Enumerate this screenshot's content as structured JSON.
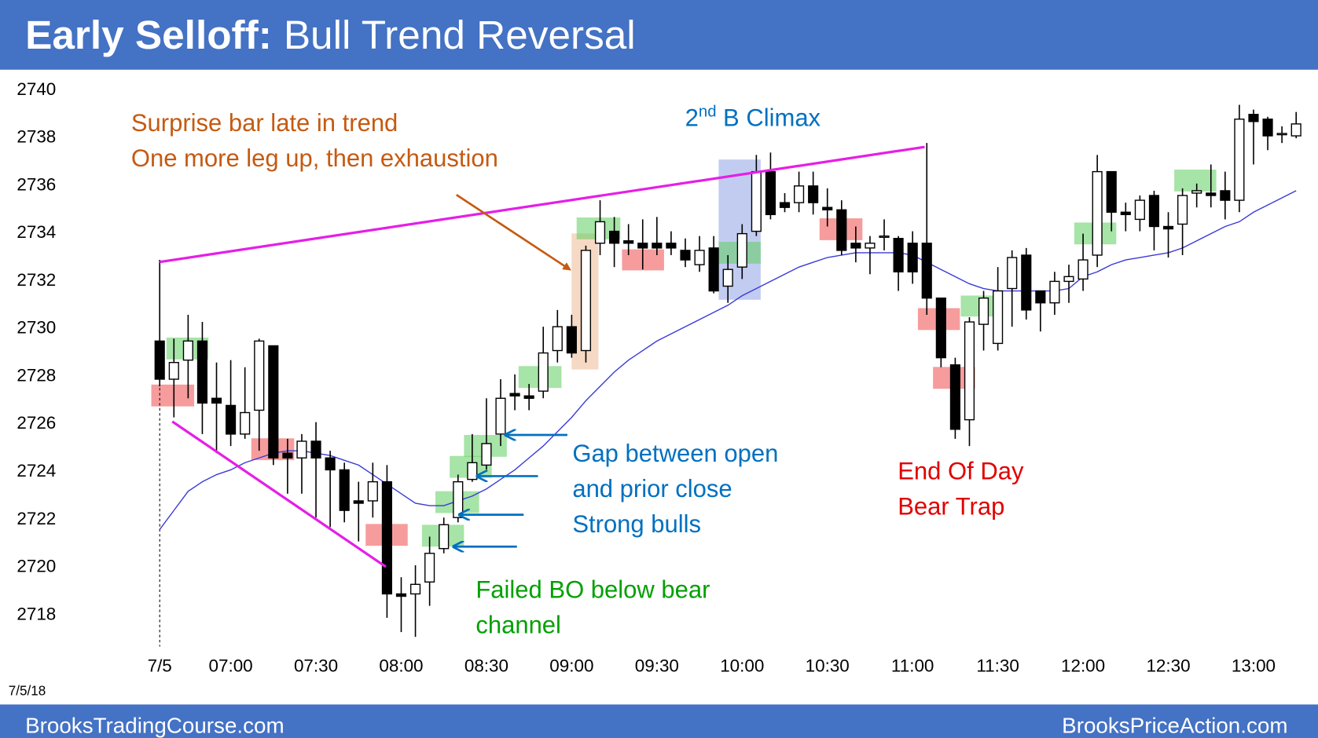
{
  "title": "Early Selloff:",
  "subtitle": "Bull Trend Reversal",
  "date_label": "7/5/18",
  "footer_left": "BrooksTradingCourse.com",
  "footer_right": "BrooksPriceAction.com",
  "annotations": {
    "surprise": [
      "Surprise bar late in trend",
      "One more leg up, then exhaustion"
    ],
    "climax": {
      "number": "2",
      "superscript": "nd",
      "text": "B Climax"
    },
    "gap": [
      "Gap between open",
      "and prior close",
      "Strong bulls"
    ],
    "failed": [
      "Failed BO below bear",
      "channel"
    ],
    "trap": [
      "End Of Day",
      "Bear Trap"
    ]
  },
  "chart_data": {
    "type": "candlestick",
    "categories": [
      "7/5",
      null,
      null,
      null,
      null,
      "07:00",
      null,
      null,
      null,
      null,
      null,
      "07:30",
      null,
      null,
      null,
      null,
      null,
      "08:00",
      null,
      null,
      null,
      null,
      null,
      "08:30",
      null,
      null,
      null,
      null,
      null,
      "09:00",
      null,
      null,
      null,
      null,
      null,
      "09:30",
      null,
      null,
      null,
      null,
      null,
      "10:00",
      null,
      null,
      null,
      null,
      null,
      "10:30",
      null,
      null,
      null,
      null,
      null,
      "11:00",
      null,
      null,
      null,
      null,
      null,
      "11:30",
      null,
      null,
      null,
      null,
      null,
      "12:00",
      null,
      null,
      null,
      null,
      null,
      "12:30",
      null,
      null,
      null,
      null,
      null,
      "13:00",
      null,
      null,
      null
    ],
    "open": [
      2729.4,
      2727.8,
      2728.6,
      2729.4,
      2727,
      2726.7,
      2725.5,
      2726.5,
      2729.2,
      2724.7,
      2724.5,
      2725.2,
      2724.5,
      2724,
      2722.7,
      2722.7,
      2723.5,
      2718.8,
      2718.8,
      2719.3,
      2720.7,
      2722,
      2723.6,
      2724.2,
      2725.5,
      2727.2,
      2727.1,
      2727.3,
      2729,
      2730,
      2729,
      2733.5,
      2734,
      2733.6,
      2733.5,
      2733.5,
      2733.5,
      2733.2,
      2732.6,
      2733.3,
      2731.7,
      2732.5,
      2734,
      2736.5,
      2735.2,
      2735.2,
      2735.9,
      2735,
      2734.9,
      2733.5,
      2733.3,
      2733.8,
      2733.7,
      2733.5,
      2733.5,
      2731.2,
      2728.4,
      2726.1,
      2730.1,
      2729.3,
      2731.6,
      2733,
      2731.5,
      2731,
      2731.9,
      2732,
      2733,
      2736.5,
      2734.8,
      2734.5,
      2735.5,
      2734.2,
      2734.3,
      2735.6,
      2735.6,
      2735.7,
      2735.3,
      2738.9,
      2738.7,
      2738.1,
      2738
    ],
    "high": [
      2732.8,
      2729.5,
      2730.5,
      2730.2,
      2728.5,
      2728.6,
      2728.3,
      2729.5,
      2729.2,
      2725.3,
      2725.5,
      2726,
      2724.8,
      2724.3,
      2723.5,
      2724.3,
      2724.2,
      2719.5,
      2720,
      2721.2,
      2722,
      2723.8,
      2725.5,
      2727,
      2727.8,
      2728,
      2727.6,
      2730,
      2730.7,
      2730.5,
      2733.4,
      2735.3,
      2734.6,
      2734.3,
      2734.5,
      2734.6,
      2734,
      2733.7,
      2733.8,
      2733.8,
      2733,
      2734.3,
      2737.2,
      2737.3,
      2735.6,
      2736.5,
      2736.5,
      2735.8,
      2735.3,
      2734.2,
      2733.8,
      2734.5,
      2733.8,
      2734,
      2737.7,
      2731.2,
      2728.7,
      2730.4,
      2731.5,
      2732.5,
      2733.2,
      2733.3,
      2731.5,
      2732.3,
      2732.6,
      2733.9,
      2737.2,
      2736.5,
      2735.2,
      2735.5,
      2735.7,
      2734.8,
      2735.8,
      2736,
      2736.8,
      2736.5,
      2739.3,
      2739.1,
      2738.8,
      2738.4,
      2739
    ],
    "low": [
      2727.5,
      2726.2,
      2727,
      2725.5,
      2724.7,
      2725,
      2725.3,
      2724.8,
      2724.2,
      2723,
      2723,
      2722,
      2721.6,
      2721.8,
      2721,
      2722,
      2717.8,
      2717.2,
      2717,
      2718.3,
      2720.5,
      2721.8,
      2723.5,
      2724,
      2725,
      2726.5,
      2726.5,
      2727,
      2728.5,
      2728.7,
      2728.5,
      2733,
      2732.5,
      2733,
      2732.4,
      2733,
      2733,
      2732.5,
      2732.3,
      2731.4,
      2731,
      2732,
      2733.8,
      2734.5,
      2734.8,
      2734.8,
      2734.7,
      2734.2,
      2733,
      2732.7,
      2732.2,
      2733.2,
      2731.5,
      2731.8,
      2730.5,
      2728.3,
      2725.3,
      2725,
      2729,
      2729,
      2730,
      2730.3,
      2729.8,
      2730.5,
      2731,
      2731.5,
      2732.5,
      2734,
      2734,
      2734,
      2733.2,
      2732.9,
      2733,
      2735,
      2735,
      2734.5,
      2734.8,
      2736.8,
      2737.4,
      2737.7,
      2737.9
    ],
    "close": [
      2727.8,
      2728.5,
      2729.4,
      2726.8,
      2726.8,
      2725.5,
      2726.4,
      2729.4,
      2724.5,
      2724.5,
      2725.2,
      2724.5,
      2724,
      2722.3,
      2722.6,
      2723.5,
      2718.8,
      2718.7,
      2719.2,
      2720.5,
      2721.7,
      2723.5,
      2724.3,
      2725.1,
      2727,
      2727.1,
      2727,
      2728.9,
      2730,
      2728.9,
      2733.2,
      2734.4,
      2733.5,
      2733.5,
      2733.3,
      2733.3,
      2733.3,
      2732.8,
      2733.2,
      2731.5,
      2732.4,
      2733.9,
      2736.5,
      2734.7,
      2735,
      2735.9,
      2735.2,
      2734.9,
      2733.2,
      2733.3,
      2733.5,
      2733.8,
      2732.3,
      2732.3,
      2731.2,
      2728.7,
      2725.7,
      2730.2,
      2731.2,
      2731.5,
      2732.9,
      2730.7,
      2731,
      2731.9,
      2732.1,
      2732.8,
      2736.5,
      2734.8,
      2734.7,
      2735.3,
      2734.2,
      2734.1,
      2735.5,
      2735.7,
      2735.5,
      2735.3,
      2738.7,
      2738.6,
      2738,
      2738.1,
      2738.5
    ],
    "ema": {
      "color": "#3a3ad8",
      "values": [
        2721.5,
        2722.3,
        2723.1,
        2723.5,
        2723.8,
        2724.0,
        2724.3,
        2724.5,
        2724.7,
        2724.8,
        2724.8,
        2724.7,
        2724.6,
        2724.4,
        2724.2,
        2723.8,
        2723.4,
        2723.0,
        2722.6,
        2722.5,
        2722.5,
        2722.7,
        2722.9,
        2723.2,
        2723.6,
        2724.0,
        2724.5,
        2725.0,
        2725.6,
        2726.2,
        2726.9,
        2727.5,
        2728.1,
        2728.6,
        2729.0,
        2729.4,
        2729.7,
        2730.0,
        2730.3,
        2730.6,
        2730.9,
        2731.3,
        2731.6,
        2731.9,
        2732.2,
        2732.5,
        2732.7,
        2732.9,
        2733.0,
        2733.1,
        2733.1,
        2733.1,
        2733.1,
        2733.0,
        2732.7,
        2732.4,
        2732.1,
        2731.8,
        2731.6,
        2731.5,
        2731.5,
        2731.5,
        2731.5,
        2731.5,
        2731.6,
        2732.1,
        2732.3,
        2732.6,
        2732.8,
        2732.9,
        2733.0,
        2733.1,
        2733.3,
        2733.6,
        2733.9,
        2734.2,
        2734.4,
        2734.8,
        2735.1,
        2735.4,
        2735.7
      ]
    },
    "up_color": "#ffffff",
    "down_color": "#000000",
    "ylim": [
      2716.6,
      2740.4
    ],
    "yticks": [
      2718,
      2720,
      2722,
      2724,
      2726,
      2728,
      2730,
      2732,
      2734,
      2736,
      2738,
      2740
    ]
  }
}
